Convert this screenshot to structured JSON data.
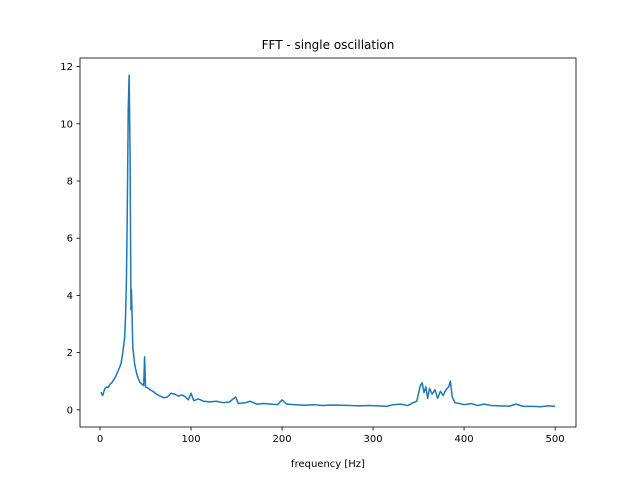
{
  "chart_data": {
    "type": "line",
    "title": "FFT - single oscillation",
    "xlabel": "frequency [Hz]",
    "ylabel": "",
    "xlim": [
      -22,
      523
    ],
    "ylim": [
      -0.6,
      12.3
    ],
    "xticks": [
      0,
      100,
      200,
      300,
      400,
      500
    ],
    "yticks": [
      0,
      2,
      4,
      6,
      8,
      10,
      12
    ],
    "grid": false,
    "series": [
      {
        "color": "#1f77b4",
        "points": [
          [
            1,
            0.62
          ],
          [
            3,
            0.5
          ],
          [
            5,
            0.72
          ],
          [
            7,
            0.8
          ],
          [
            9,
            0.78
          ],
          [
            11,
            0.9
          ],
          [
            13,
            0.95
          ],
          [
            15,
            1.05
          ],
          [
            17,
            1.15
          ],
          [
            19,
            1.3
          ],
          [
            21,
            1.45
          ],
          [
            23,
            1.6
          ],
          [
            25,
            2.0
          ],
          [
            27,
            2.5
          ],
          [
            28,
            3.2
          ],
          [
            29,
            4.5
          ],
          [
            30,
            7.0
          ],
          [
            31,
            10.5
          ],
          [
            32,
            11.7
          ],
          [
            33,
            9.0
          ],
          [
            34,
            3.5
          ],
          [
            34.5,
            4.2
          ],
          [
            35,
            3.6
          ],
          [
            36,
            2.2
          ],
          [
            38,
            1.6
          ],
          [
            40,
            1.3
          ],
          [
            42,
            1.1
          ],
          [
            44,
            0.95
          ],
          [
            46,
            0.9
          ],
          [
            48,
            0.85
          ],
          [
            49,
            1.85
          ],
          [
            50,
            0.8
          ],
          [
            52,
            0.78
          ],
          [
            55,
            0.7
          ],
          [
            58,
            0.65
          ],
          [
            62,
            0.55
          ],
          [
            66,
            0.48
          ],
          [
            70,
            0.42
          ],
          [
            74,
            0.45
          ],
          [
            78,
            0.58
          ],
          [
            82,
            0.55
          ],
          [
            86,
            0.48
          ],
          [
            90,
            0.52
          ],
          [
            94,
            0.45
          ],
          [
            97,
            0.35
          ],
          [
            100,
            0.58
          ],
          [
            103,
            0.32
          ],
          [
            108,
            0.38
          ],
          [
            114,
            0.3
          ],
          [
            120,
            0.28
          ],
          [
            128,
            0.3
          ],
          [
            135,
            0.25
          ],
          [
            142,
            0.27
          ],
          [
            149,
            0.45
          ],
          [
            152,
            0.22
          ],
          [
            160,
            0.25
          ],
          [
            165,
            0.3
          ],
          [
            172,
            0.2
          ],
          [
            180,
            0.22
          ],
          [
            188,
            0.2
          ],
          [
            195,
            0.18
          ],
          [
            200,
            0.35
          ],
          [
            205,
            0.2
          ],
          [
            215,
            0.18
          ],
          [
            225,
            0.16
          ],
          [
            235,
            0.18
          ],
          [
            245,
            0.15
          ],
          [
            255,
            0.17
          ],
          [
            265,
            0.16
          ],
          [
            275,
            0.15
          ],
          [
            285,
            0.14
          ],
          [
            295,
            0.15
          ],
          [
            305,
            0.14
          ],
          [
            315,
            0.12
          ],
          [
            322,
            0.18
          ],
          [
            330,
            0.2
          ],
          [
            338,
            0.15
          ],
          [
            344,
            0.25
          ],
          [
            348,
            0.3
          ],
          [
            352,
            0.85
          ],
          [
            354,
            0.95
          ],
          [
            356,
            0.6
          ],
          [
            358,
            0.8
          ],
          [
            360,
            0.4
          ],
          [
            362,
            0.75
          ],
          [
            365,
            0.55
          ],
          [
            368,
            0.7
          ],
          [
            371,
            0.4
          ],
          [
            374,
            0.65
          ],
          [
            377,
            0.5
          ],
          [
            380,
            0.7
          ],
          [
            383,
            0.8
          ],
          [
            385,
            1.0
          ],
          [
            387,
            0.45
          ],
          [
            390,
            0.25
          ],
          [
            395,
            0.22
          ],
          [
            400,
            0.18
          ],
          [
            408,
            0.22
          ],
          [
            415,
            0.15
          ],
          [
            422,
            0.2
          ],
          [
            430,
            0.15
          ],
          [
            440,
            0.14
          ],
          [
            450,
            0.13
          ],
          [
            457,
            0.2
          ],
          [
            465,
            0.12
          ],
          [
            475,
            0.12
          ],
          [
            485,
            0.11
          ],
          [
            492,
            0.14
          ],
          [
            500,
            0.12
          ]
        ]
      }
    ]
  }
}
